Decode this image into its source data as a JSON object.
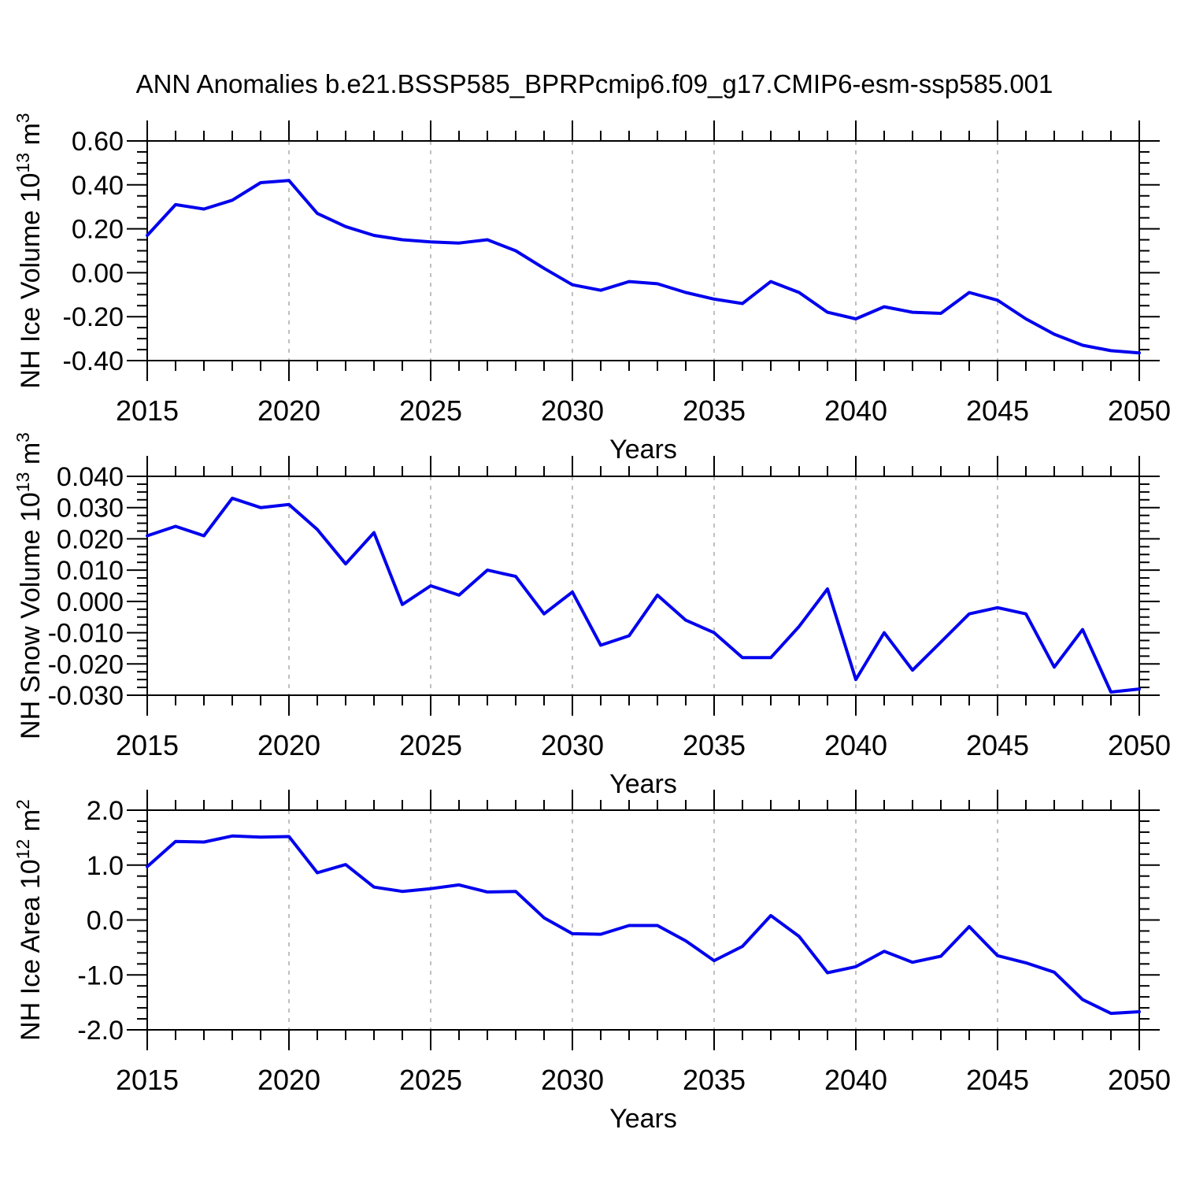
{
  "title": "ANN Anomalies b.e21.BSSP585_BPRPcmip6.f09_g17.CMIP6-esm-ssp585.001",
  "colors": {
    "line": "#0000ee",
    "grid": "#aaaaaa",
    "axis": "#000000",
    "background": "#ffffff"
  },
  "chart_data": [
    {
      "type": "line",
      "name": "nh-ice-volume",
      "ylabel": "NH Ice Volume 10^13 m^3",
      "ylabel_parts": [
        {
          "t": "NH Ice Volume 10"
        },
        {
          "t": "13",
          "sup": true
        },
        {
          "t": " m"
        },
        {
          "t": "3",
          "sup": true
        }
      ],
      "xlabel": "Years",
      "x": [
        2015,
        2016,
        2017,
        2018,
        2019,
        2020,
        2021,
        2022,
        2023,
        2024,
        2025,
        2026,
        2027,
        2028,
        2029,
        2030,
        2031,
        2032,
        2033,
        2034,
        2035,
        2036,
        2037,
        2038,
        2039,
        2040,
        2041,
        2042,
        2043,
        2044,
        2045,
        2046,
        2047,
        2048,
        2049,
        2050
      ],
      "values": [
        0.17,
        0.31,
        0.29,
        0.33,
        0.41,
        0.42,
        0.27,
        0.21,
        0.17,
        0.15,
        0.14,
        0.135,
        0.15,
        0.1,
        0.02,
        -0.055,
        -0.08,
        -0.04,
        -0.05,
        -0.09,
        -0.12,
        -0.14,
        -0.04,
        -0.09,
        -0.18,
        -0.21,
        -0.155,
        -0.18,
        -0.185,
        -0.09,
        -0.125,
        -0.21,
        -0.28,
        -0.33,
        -0.355,
        -0.365
      ],
      "xlim": [
        2015,
        2050
      ],
      "ylim": [
        -0.4,
        0.6
      ],
      "yticks": [
        0.6,
        0.4,
        0.2,
        0.0,
        -0.2,
        -0.4
      ],
      "ytick_labels": [
        "0.60",
        "0.40",
        "0.20",
        "0.00",
        "-0.20",
        "-0.40"
      ],
      "y_minor_step": 0.05,
      "xticks": [
        2015,
        2020,
        2025,
        2030,
        2035,
        2040,
        2045,
        2050
      ],
      "xtick_labels": [
        "2015",
        "2020",
        "2025",
        "2030",
        "2035",
        "2040",
        "2045",
        "2050"
      ],
      "x_minor_step": 1,
      "grid_x": [
        2020,
        2025,
        2030,
        2035,
        2040,
        2045
      ],
      "grid_style": "vertical-dashed",
      "legend": "none"
    },
    {
      "type": "line",
      "name": "nh-snow-volume",
      "ylabel": "NH Snow Volume 10^13 m^3",
      "ylabel_parts": [
        {
          "t": "NH Snow Volume 10"
        },
        {
          "t": "13",
          "sup": true
        },
        {
          "t": " m"
        },
        {
          "t": "3",
          "sup": true
        }
      ],
      "xlabel": "Years",
      "x": [
        2015,
        2016,
        2017,
        2018,
        2019,
        2020,
        2021,
        2022,
        2023,
        2024,
        2025,
        2026,
        2027,
        2028,
        2029,
        2030,
        2031,
        2032,
        2033,
        2034,
        2035,
        2036,
        2037,
        2038,
        2039,
        2040,
        2041,
        2042,
        2043,
        2044,
        2045,
        2046,
        2047,
        2048,
        2049,
        2050
      ],
      "values": [
        0.021,
        0.024,
        0.021,
        0.033,
        0.03,
        0.031,
        0.023,
        0.012,
        0.022,
        -0.001,
        0.005,
        0.002,
        0.01,
        0.008,
        -0.004,
        0.003,
        -0.014,
        -0.011,
        0.002,
        -0.006,
        -0.01,
        -0.018,
        -0.018,
        -0.008,
        0.004,
        -0.025,
        -0.01,
        -0.022,
        -0.013,
        -0.004,
        -0.002,
        -0.004,
        -0.021,
        -0.009,
        -0.029,
        -0.028
      ],
      "xlim": [
        2015,
        2050
      ],
      "ylim": [
        -0.03,
        0.04
      ],
      "yticks": [
        0.04,
        0.03,
        0.02,
        0.01,
        0.0,
        -0.01,
        -0.02,
        -0.03
      ],
      "ytick_labels": [
        "0.040",
        "0.030",
        "0.020",
        "0.010",
        "0.000",
        "-0.010",
        "-0.020",
        "-0.030"
      ],
      "y_minor_step": 0.0025,
      "xticks": [
        2015,
        2020,
        2025,
        2030,
        2035,
        2040,
        2045,
        2050
      ],
      "xtick_labels": [
        "2015",
        "2020",
        "2025",
        "2030",
        "2035",
        "2040",
        "2045",
        "2050"
      ],
      "x_minor_step": 1,
      "grid_x": [
        2020,
        2025,
        2030,
        2035,
        2040,
        2045
      ],
      "grid_style": "vertical-dashed",
      "legend": "none"
    },
    {
      "type": "line",
      "name": "nh-ice-area",
      "ylabel": "NH Ice Area 10^12 m^2",
      "ylabel_parts": [
        {
          "t": "NH Ice Area 10"
        },
        {
          "t": "12",
          "sup": true
        },
        {
          "t": " m"
        },
        {
          "t": "2",
          "sup": true
        }
      ],
      "xlabel": "Years",
      "x": [
        2015,
        2016,
        2017,
        2018,
        2019,
        2020,
        2021,
        2022,
        2023,
        2024,
        2025,
        2026,
        2027,
        2028,
        2029,
        2030,
        2031,
        2032,
        2033,
        2034,
        2035,
        2036,
        2037,
        2038,
        2039,
        2040,
        2041,
        2042,
        2043,
        2044,
        2045,
        2046,
        2047,
        2048,
        2049,
        2050
      ],
      "values": [
        0.97,
        1.43,
        1.42,
        1.53,
        1.51,
        1.52,
        0.86,
        1.01,
        0.6,
        0.52,
        0.57,
        0.64,
        0.51,
        0.52,
        0.04,
        -0.25,
        -0.26,
        -0.1,
        -0.1,
        -0.38,
        -0.74,
        -0.48,
        0.08,
        -0.3,
        -0.96,
        -0.85,
        -0.57,
        -0.77,
        -0.66,
        -0.12,
        -0.65,
        -0.78,
        -0.95,
        -1.45,
        -1.7,
        -1.67
      ],
      "xlim": [
        2015,
        2050
      ],
      "ylim": [
        -2.0,
        2.0
      ],
      "yticks": [
        2.0,
        1.0,
        0.0,
        -1.0,
        -2.0
      ],
      "ytick_labels": [
        "2.0",
        "1.0",
        "0.0",
        "-1.0",
        "-2.0"
      ],
      "y_minor_step": 0.2,
      "xticks": [
        2015,
        2020,
        2025,
        2030,
        2035,
        2040,
        2045,
        2050
      ],
      "xtick_labels": [
        "2015",
        "2020",
        "2025",
        "2030",
        "2035",
        "2040",
        "2045",
        "2050"
      ],
      "x_minor_step": 1,
      "grid_x": [
        2020,
        2025,
        2030,
        2035,
        2040,
        2045
      ],
      "grid_style": "vertical-dashed",
      "legend": "none"
    }
  ]
}
